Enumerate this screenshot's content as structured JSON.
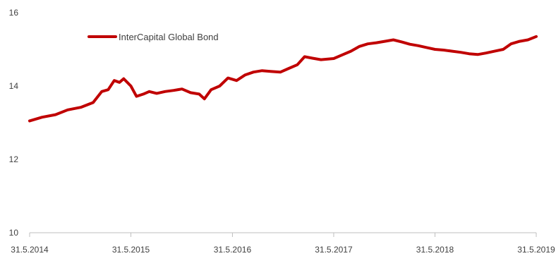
{
  "chart_data": {
    "type": "line",
    "title": "",
    "xlabel": "",
    "ylabel": "",
    "ylim": [
      10,
      16
    ],
    "y_ticks": [
      "10",
      "12",
      "14",
      "16"
    ],
    "x_ticks": [
      "31.5.2014",
      "31.5.2015",
      "31.5.2016",
      "31.5.2017",
      "31.5.2018",
      "31.5.2019"
    ],
    "grid": false,
    "legend_position": "top-left",
    "series": [
      {
        "name": "InterCapital Global Bond",
        "color": "#c00000",
        "points": [
          [
            "2014-05-31",
            13.05
          ],
          [
            "2014-07-15",
            13.15
          ],
          [
            "2014-09-01",
            13.22
          ],
          [
            "2014-10-15",
            13.35
          ],
          [
            "2014-12-01",
            13.42
          ],
          [
            "2015-01-15",
            13.55
          ],
          [
            "2015-02-15",
            13.85
          ],
          [
            "2015-03-10",
            13.9
          ],
          [
            "2015-04-01",
            14.15
          ],
          [
            "2015-04-20",
            14.1
          ],
          [
            "2015-05-05",
            14.2
          ],
          [
            "2015-05-31",
            14.0
          ],
          [
            "2015-06-20",
            13.72
          ],
          [
            "2015-07-15",
            13.78
          ],
          [
            "2015-08-05",
            13.85
          ],
          [
            "2015-09-01",
            13.8
          ],
          [
            "2015-10-01",
            13.85
          ],
          [
            "2015-11-01",
            13.88
          ],
          [
            "2015-12-01",
            13.92
          ],
          [
            "2016-01-01",
            13.82
          ],
          [
            "2016-02-01",
            13.78
          ],
          [
            "2016-02-20",
            13.65
          ],
          [
            "2016-03-15",
            13.9
          ],
          [
            "2016-04-15",
            14.0
          ],
          [
            "2016-05-15",
            14.22
          ],
          [
            "2016-06-15",
            14.15
          ],
          [
            "2016-07-15",
            14.3
          ],
          [
            "2016-08-15",
            14.38
          ],
          [
            "2016-09-15",
            14.42
          ],
          [
            "2016-10-15",
            14.4
          ],
          [
            "2016-11-20",
            14.38
          ],
          [
            "2016-12-20",
            14.48
          ],
          [
            "2017-01-20",
            14.58
          ],
          [
            "2017-02-15",
            14.8
          ],
          [
            "2017-03-15",
            14.76
          ],
          [
            "2017-04-15",
            14.72
          ],
          [
            "2017-05-31",
            14.75
          ],
          [
            "2017-07-01",
            14.85
          ],
          [
            "2017-08-01",
            14.95
          ],
          [
            "2017-09-01",
            15.08
          ],
          [
            "2017-10-01",
            15.15
          ],
          [
            "2017-11-01",
            15.18
          ],
          [
            "2017-12-01",
            15.22
          ],
          [
            "2018-01-01",
            15.26
          ],
          [
            "2018-02-01",
            15.2
          ],
          [
            "2018-03-01",
            15.14
          ],
          [
            "2018-04-01",
            15.1
          ],
          [
            "2018-05-01",
            15.05
          ],
          [
            "2018-05-31",
            15.0
          ],
          [
            "2018-07-01",
            14.98
          ],
          [
            "2018-08-01",
            14.95
          ],
          [
            "2018-09-01",
            14.92
          ],
          [
            "2018-10-01",
            14.88
          ],
          [
            "2018-11-01",
            14.86
          ],
          [
            "2018-12-01",
            14.9
          ],
          [
            "2019-01-01",
            14.95
          ],
          [
            "2019-02-01",
            15.0
          ],
          [
            "2019-03-01",
            15.15
          ],
          [
            "2019-04-01",
            15.22
          ],
          [
            "2019-05-01",
            15.26
          ],
          [
            "2019-05-31",
            15.35
          ]
        ]
      }
    ]
  }
}
